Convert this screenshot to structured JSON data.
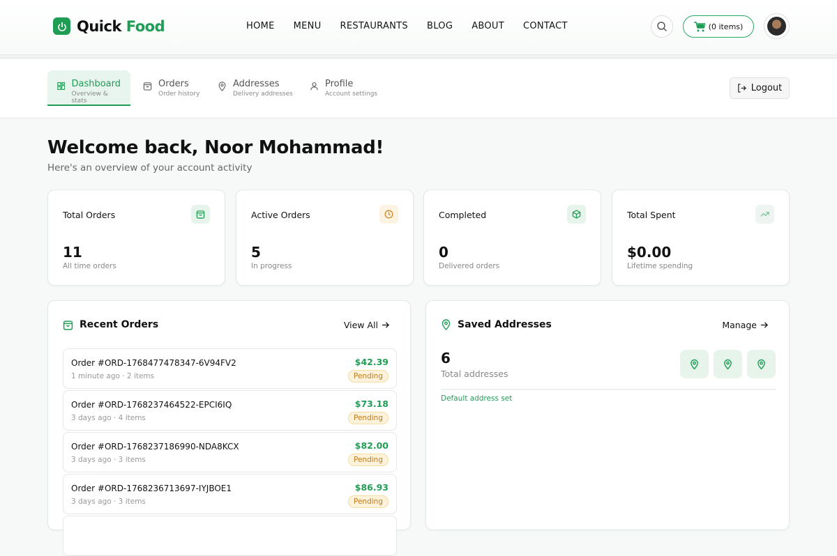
{
  "brand": {
    "name_part1": "Quick",
    "name_part2": "Food",
    "accent": "#1f9d55"
  },
  "nav": [
    "HOME",
    "MENU",
    "RESTAURANTS",
    "BLOG",
    "ABOUT",
    "CONTACT"
  ],
  "cart": {
    "label": "(0 items)"
  },
  "tabs": [
    {
      "label": "Dashboard",
      "sub": "Overview & stats",
      "icon": "grid-icon",
      "active": true
    },
    {
      "label": "Orders",
      "sub": "Order history",
      "icon": "bag-icon"
    },
    {
      "label": "Addresses",
      "sub": "Delivery addresses",
      "icon": "pin-icon"
    },
    {
      "label": "Profile",
      "sub": "Account settings",
      "icon": "user-icon"
    }
  ],
  "logout": "Logout",
  "welcome": {
    "title": "Welcome back, Noor Mohammad!",
    "subtitle": "Here's an overview of your account activity"
  },
  "stats": [
    {
      "label": "Total Orders",
      "value": "11",
      "note": "All time orders",
      "icon": "bag-icon"
    },
    {
      "label": "Active Orders",
      "value": "5",
      "note": "In progress",
      "icon": "clock-icon"
    },
    {
      "label": "Completed",
      "value": "0",
      "note": "Delivered orders",
      "icon": "package-icon"
    },
    {
      "label": "Total Spent",
      "value": "$0.00",
      "note": "Lifetime spending",
      "icon": "trending-up-icon"
    }
  ],
  "recent_orders": {
    "title": "Recent Orders",
    "view_all": "View All",
    "items": [
      {
        "id": "Order #ORD-1768477478347-6V94FV2",
        "meta": "1 minute ago · 2 items",
        "amount": "$42.39",
        "status": "Pending"
      },
      {
        "id": "Order #ORD-1768237464522-EPCI6IQ",
        "meta": "3 days ago · 4 items",
        "amount": "$73.18",
        "status": "Pending"
      },
      {
        "id": "Order #ORD-1768237186990-NDA8KCX",
        "meta": "3 days ago · 3 items",
        "amount": "$82.00",
        "status": "Pending"
      },
      {
        "id": "Order #ORD-1768236713697-IYJBOE1",
        "meta": "3 days ago · 3 items",
        "amount": "$86.93",
        "status": "Pending"
      }
    ]
  },
  "addresses": {
    "title": "Saved Addresses",
    "manage": "Manage",
    "count": "6",
    "count_label": "Total addresses",
    "default_note": "Default address set"
  }
}
